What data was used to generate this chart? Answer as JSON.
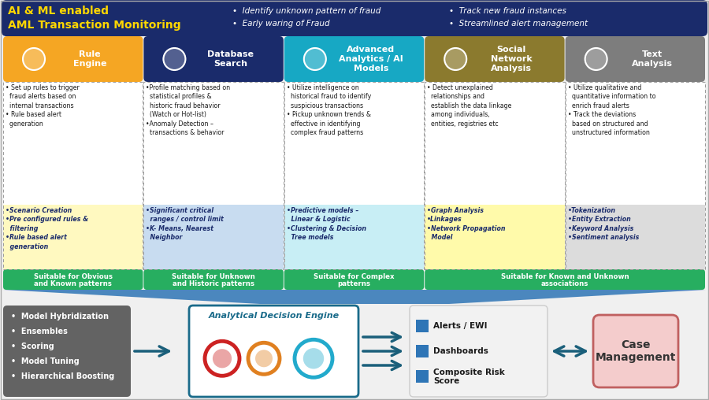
{
  "bg_color": "#f0f0f0",
  "header_bg": "#1a2b6b",
  "header_title_line1": "AI & ML enabled",
  "header_title_line2": "AML Transaction Monitoring",
  "header_title_color": "#FFD700",
  "header_bullets_col1": [
    "Identify unknown pattern of fraud",
    "Early waring of Fraud"
  ],
  "header_bullets_col2": [
    "Track new fraud instances",
    "Streamlined alert management"
  ],
  "header_bullet_color": "#ffffff",
  "col_colors": [
    "#F5A623",
    "#1a2b6b",
    "#17A8C4",
    "#8B7A2E",
    "#7D7D7D"
  ],
  "col_sub_bgs": [
    "#FFF9C0",
    "#C8DCF0",
    "#C8EEF5",
    "#FFFAAA",
    "#DCDCDC"
  ],
  "col_titles": [
    "Rule\nEngine",
    "Database\nSearch",
    "Advanced\nAnalytics / AI\nModels",
    "Social\nNetwork\nAnalysis",
    "Text\nAnalysis"
  ],
  "col_body_texts": [
    "• Set up rules to trigger\n  fraud alerts based on\n  internal transactions\n• Rule based alert\n  generation",
    "•Profile matching based on\n  statistical profiles &\n  historic fraud behavior\n  (Watch or Hot-list)\n•Anomaly Detection –\n  transactions & behavior",
    "• Utilize intelligence on\n  historical fraud to identify\n  suspicious transactions\n• Pickup unknown trends &\n  effective in identifying\n  complex fraud patterns",
    "• Detect unexplained\n  relationships and\n  establish the data linkage\n  among individuals,\n  entities, registries etc",
    "• Utilize qualitative and\n  quantitative information to\n  enrich fraud alerts\n• Track the deviations\n  based on structured and\n  unstructured information"
  ],
  "col_sub_texts": [
    "•Scenario Creation\n•Pre configured rules &\n  filtering\n•Rule based alert\n  generation",
    "•Significant critical\n  ranges / control limit\n•K- Means, Nearest\n  Neighbor",
    "•Predictive models –\n  Linear & Logistic\n•Clustering & Decision\n  Tree models",
    "•Graph Analysis\n•Linkages\n•Network Propagation\n  Model",
    "•Tokenization\n•Entity Extraction\n•Keyword Analysis\n•Sentiment analysis"
  ],
  "col_footer_texts": [
    "Suitable for Obvious\nand Known patterns",
    "Suitable for Unknown\nand Historic patterns",
    "Suitable for Complex\npatterns",
    "Suitable for Known and Unknown\nassociations",
    null
  ],
  "footer_green": "#27AE60",
  "bottom_left_bg": "#636363",
  "bottom_left_text": [
    "Model Hybridization",
    "Ensembles",
    "Scoring",
    "Model Tuning",
    "Hierarchical Boosting"
  ],
  "bottom_left_color": "#ffffff",
  "bottom_center_title": "Analytical Decision Engine",
  "bottom_center_border": "#1a6b8a",
  "bottom_right_items": [
    "Alerts / EWI",
    "Dashboards",
    "Composite Risk\nScore"
  ],
  "case_mgmt_bg": "#F4CCCC",
  "case_mgmt_border": "#C06060",
  "case_mgmt_text": "Case\nManagement",
  "arrow_color": "#1a5f7a",
  "funnel_color": "#2E75B6"
}
